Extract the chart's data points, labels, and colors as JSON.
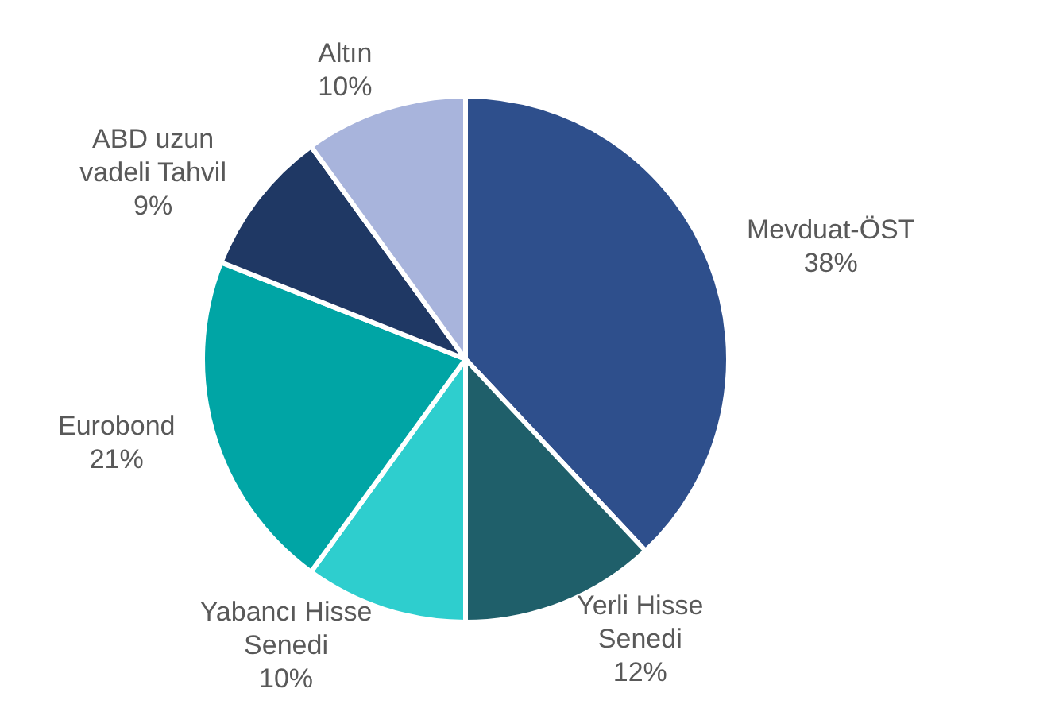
{
  "chart_data": {
    "type": "pie",
    "categories": [
      "Mevduat-ÖST",
      "Yerli Hisse Senedi",
      "Yabancı Hisse Senedi",
      "Eurobond",
      "ABD uzun vadeli Tahvil",
      "Altın"
    ],
    "values": [
      38,
      12,
      10,
      21,
      9,
      10
    ],
    "value_labels": [
      "38%",
      "12%",
      "10%",
      "21%",
      "9%",
      "10%"
    ],
    "colors": [
      "#2e4f8c",
      "#1f5f6a",
      "#2ecece",
      "#00a5a5",
      "#1f3864",
      "#a8b4dc"
    ],
    "legend": false
  }
}
